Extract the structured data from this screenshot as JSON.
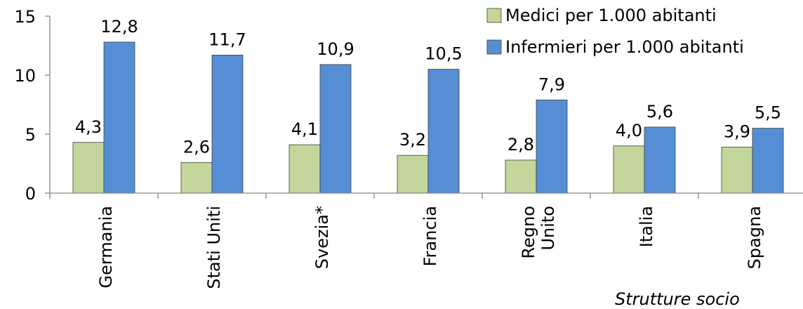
{
  "chart_data": {
    "type": "bar",
    "categories": [
      "Germania",
      "Stati Uniti",
      "Svezia*",
      "Francia",
      "Regno Unito",
      "Italia",
      "Spagna"
    ],
    "category_lines": [
      [
        "Germania"
      ],
      [
        "Stati Uniti"
      ],
      [
        "Svezia*"
      ],
      [
        "Francia"
      ],
      [
        "Regno",
        "Unito"
      ],
      [
        "Italia"
      ],
      [
        "Spagna"
      ]
    ],
    "series": [
      {
        "name": "Medici per 1.000 abitanti",
        "values": [
          4.3,
          2.6,
          4.1,
          3.2,
          2.8,
          4.0,
          3.9
        ],
        "labels": [
          "4,3",
          "2,6",
          "4,1",
          "3,2",
          "2,8",
          "4,0",
          "3,9"
        ],
        "color": "#c3d69b"
      },
      {
        "name": "Infermieri per 1.000 abitanti",
        "values": [
          12.8,
          11.7,
          10.9,
          10.5,
          7.9,
          5.6,
          5.5
        ],
        "labels": [
          "12,8",
          "11,7",
          "10,9",
          "10,5",
          "7,9",
          "5,6",
          "5,5"
        ],
        "color": "#558ed5"
      }
    ],
    "yticks": [
      "0",
      "5",
      "10",
      "15"
    ],
    "ylim": [
      0,
      15
    ],
    "legend": "top-right",
    "grid": false
  },
  "footnote": "Strutture socio"
}
